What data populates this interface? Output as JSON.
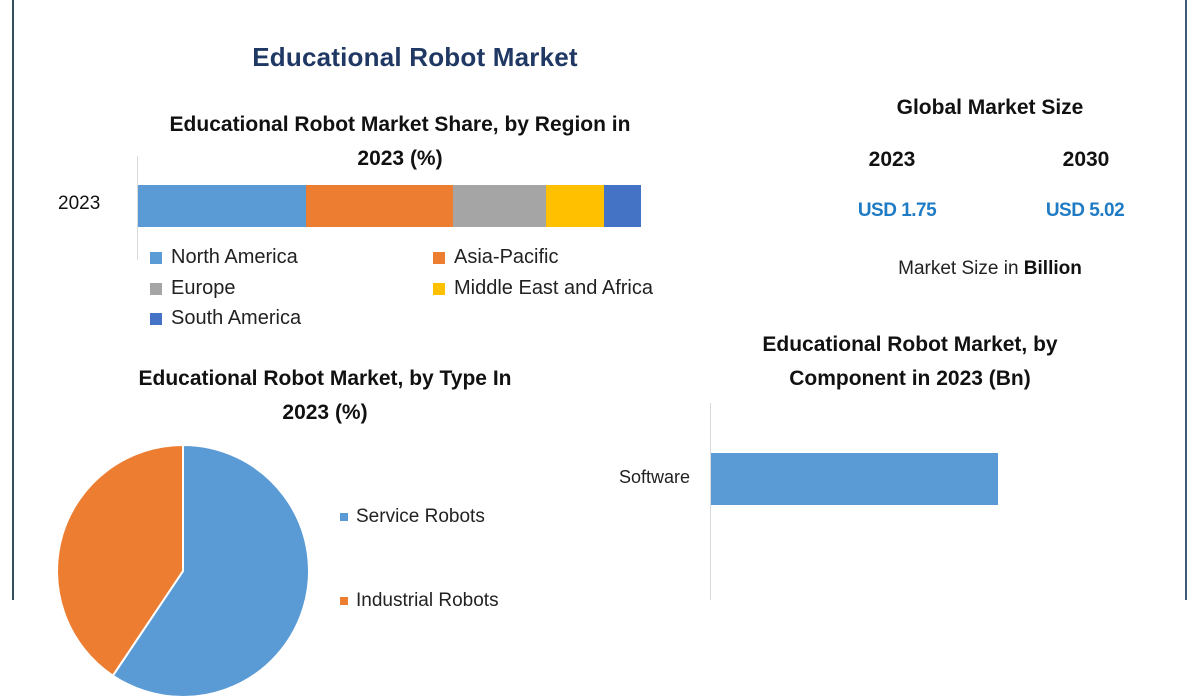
{
  "page": {
    "title": "Educational Robot Market",
    "colors": {
      "title": "#1f3864",
      "value_blue": "#1f7bc4",
      "border_left": "#34505f",
      "border_right": "#3f5a78"
    }
  },
  "region_chart": {
    "title_line1": "Educational Robot Market Share, by Region in",
    "title_line2": "2023 (%)",
    "y_label": "2023",
    "legend": [
      {
        "label": "North America",
        "color": "#5b9bd5"
      },
      {
        "label": "Asia-Pacific",
        "color": "#ed7d31"
      },
      {
        "label": "Europe",
        "color": "#a5a5a5"
      },
      {
        "label": "Middle East and Africa",
        "color": "#ffc000"
      },
      {
        "label": "South America",
        "color": "#4472c4"
      }
    ]
  },
  "global_market": {
    "title": "Global Market Size",
    "year_a": "2023",
    "year_b": "2030",
    "value_a": "USD 1.75",
    "value_b": "USD 5.02",
    "note_prefix": "Market Size in ",
    "note_bold": "Billion"
  },
  "type_chart": {
    "title_line1": "Educational Robot Market, by Type In",
    "title_line2": "2023 (%)",
    "legend": [
      {
        "label": "Service Robots",
        "color": "#5b9bd5"
      },
      {
        "label": "Industrial Robots",
        "color": "#ed7d31"
      }
    ]
  },
  "component_chart": {
    "title_line1": "Educational Robot Market, by",
    "title_line2": "Component in 2023 (Bn)",
    "categories": [
      "Software"
    ],
    "bar_color": "#5b9bd5"
  },
  "chart_data": [
    {
      "type": "bar",
      "orientation": "horizontal",
      "stacked": true,
      "title": "Educational Robot Market Share, by Region in 2023 (%)",
      "categories": [
        "2023"
      ],
      "series": [
        {
          "name": "North America",
          "values": [
            33.4
          ],
          "color": "#5b9bd5"
        },
        {
          "name": "Asia-Pacific",
          "values": [
            29.2
          ],
          "color": "#ed7d31"
        },
        {
          "name": "Europe",
          "values": [
            18.5
          ],
          "color": "#a5a5a5"
        },
        {
          "name": "Middle East and Africa",
          "values": [
            11.5
          ],
          "color": "#ffc000"
        },
        {
          "name": "South America",
          "values": [
            7.4
          ],
          "color": "#4472c4"
        }
      ],
      "xlabel": "",
      "ylabel": "",
      "xlim": [
        0,
        100
      ],
      "grid": false,
      "legend_position": "bottom"
    },
    {
      "type": "table",
      "title": "Global Market Size",
      "columns": [
        "2023",
        "2030"
      ],
      "rows": [
        [
          "USD 1.75",
          "USD 5.02"
        ]
      ],
      "unit": "Billion"
    },
    {
      "type": "pie",
      "title": "Educational Robot Market, by Type In 2023 (%)",
      "categories": [
        "Service Robots",
        "Industrial Robots"
      ],
      "values": [
        59.4,
        40.6
      ],
      "colors": [
        "#5b9bd5",
        "#ed7d31"
      ],
      "legend_position": "right"
    },
    {
      "type": "bar",
      "orientation": "horizontal",
      "title": "Educational Robot Market, by Component in 2023 (Bn)",
      "categories": [
        "Software"
      ],
      "values": [
        1.0
      ],
      "xlabel": "",
      "ylabel": "",
      "grid": false,
      "note": "Only the Software bar is visible; remaining categories are cut off below."
    }
  ]
}
